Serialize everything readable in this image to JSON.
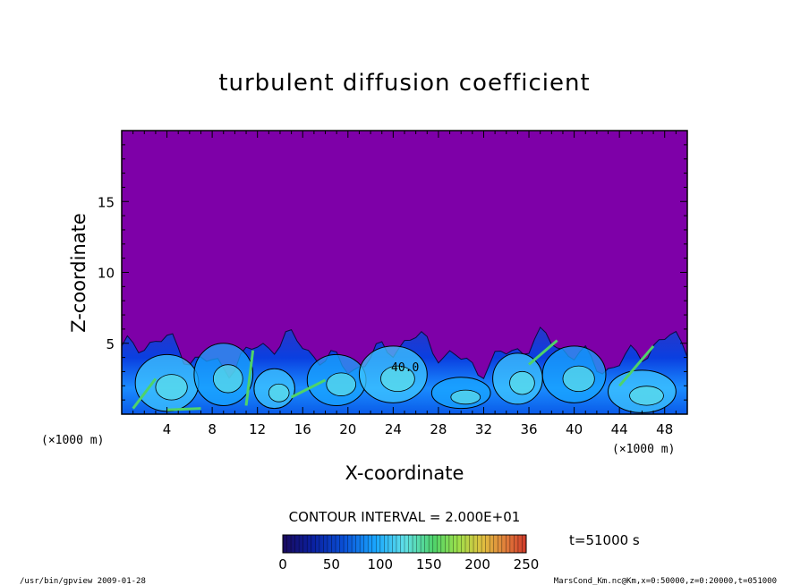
{
  "chart_data": {
    "type": "heatmap",
    "title": "turbulent diffusion coefficient",
    "xlabel": "X-coordinate",
    "ylabel": "Z-coordinate",
    "x_unit": "(×1000 m)",
    "y_unit": "(×1000 m)",
    "xlim": [
      0,
      50
    ],
    "ylim": [
      0,
      20
    ],
    "x_ticks": [
      "4",
      "8",
      "12",
      "16",
      "20",
      "24",
      "28",
      "32",
      "36",
      "40",
      "44",
      "48"
    ],
    "y_ticks": [
      "5",
      "10",
      "15"
    ],
    "contour_interval": "CONTOUR INTERVAL = 2.000E+01",
    "contour_label": "40.0",
    "time_label": "t=51000 s",
    "colorbar": {
      "min": 0,
      "max": 250,
      "ticks": [
        "0",
        "50",
        "100",
        "150",
        "200",
        "250"
      ],
      "colors": [
        "#1a0a5e",
        "#0a1f9e",
        "#0a4fd6",
        "#19a6ff",
        "#5fe0e8",
        "#4fd36a",
        "#9ee04a",
        "#e0c040",
        "#e07a3a",
        "#d03a2a"
      ]
    },
    "background_color": "#7e00a8",
    "boundary_layer_top": 5.5
  },
  "footer": {
    "left": "/usr/bin/gpview   2009-01-28",
    "right": "MarsCond_Km.nc@Km,x=0:50000,z=0:20000,t=051000"
  }
}
